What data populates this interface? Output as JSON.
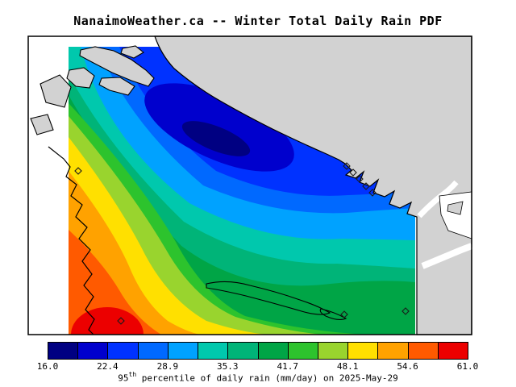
{
  "title": "NanaimoWeather.ca -- Winter Total Daily Rain PDF",
  "caption": {
    "pre": "95",
    "sup": "th",
    "post": " percentile of daily rain (mm/day) on 2025-May-29"
  },
  "chart_data": {
    "type": "heatmap",
    "subtype": "filled contour map over coastline (winter total daily rain PDF)",
    "title": "NanaimoWeather.ca -- Winter Total Daily Rain PDF",
    "caption": "95th percentile of daily rain (mm/day) on 2025-May-29",
    "variable": "95th percentile of daily rain",
    "units": "mm/day",
    "season": "Winter",
    "date": "2025-May-29",
    "colorbar": {
      "orientation": "horizontal, bottom",
      "min": 16.0,
      "max": 61.0,
      "tick_values": [
        16.0,
        22.4,
        28.9,
        35.3,
        41.7,
        48.1,
        54.6,
        61.0
      ],
      "tick_labels": [
        "16.0",
        "22.4",
        "28.9",
        "35.3",
        "41.7",
        "48.1",
        "54.6",
        "61.0"
      ],
      "segment_colors": [
        "#000082",
        "#0000cd",
        "#0032ff",
        "#0069ff",
        "#00a2ff",
        "#00c8ad",
        "#00b478",
        "#00a546",
        "#2dc32d",
        "#99d42e",
        "#ffe000",
        "#ffa200",
        "#ff5a00",
        "#ec0000"
      ]
    },
    "field_summary": {
      "minimum_core": "<= 16 mm/day (dark navy), elongated core in upper-middle of domain hugging the mainland coast",
      "maximum_core": ">= 61 mm/day (red), core at lower-left corner of domain",
      "gradient": "values increase from northeast (blues, ~16-29) through greens (~35-42) to the southwest (yellow/orange/red, ~45-61)",
      "right_edge": "blue pocket (~22-29) at the coast indentations, teal/green (~32-42) toward bottom-right corner",
      "land_mask": "grey = land outside the data domain; black lines = coastlines and islands; open diamonds = station locations"
    },
    "station_markers": 9
  }
}
